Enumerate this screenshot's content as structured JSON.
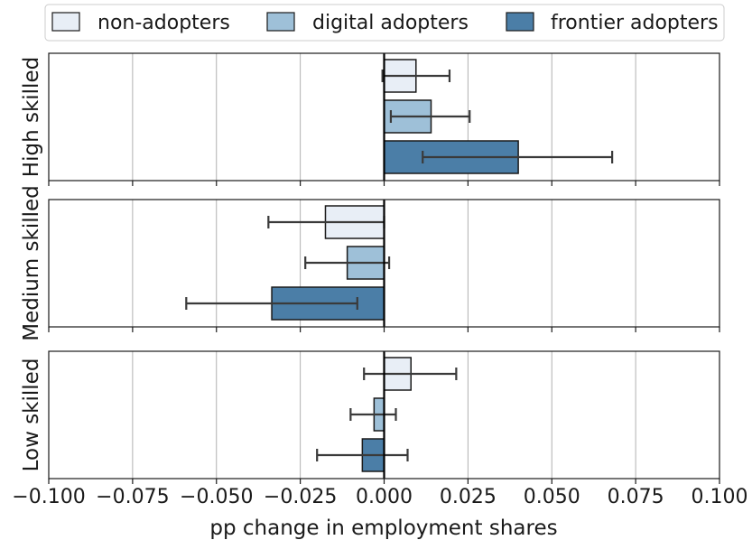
{
  "chart_data": {
    "type": "bar",
    "orientation": "horizontal",
    "xlabel": "pp change in employment shares",
    "xlim": [
      -0.1,
      0.1
    ],
    "xticks": [
      -0.1,
      -0.075,
      -0.05,
      -0.025,
      0.0,
      0.025,
      0.05,
      0.075,
      0.1
    ],
    "xtick_labels": [
      "−0.100",
      "−0.075",
      "−0.050",
      "−0.025",
      "0.000",
      "0.025",
      "0.050",
      "0.075",
      "0.100"
    ],
    "grid": "vertical",
    "legend_position": "top",
    "series_colors": [
      "#e8eef6",
      "#9ec0d8",
      "#4b7ea7"
    ],
    "series": [
      {
        "name": "non-adopters"
      },
      {
        "name": "digital adopters"
      },
      {
        "name": "frontier adopters"
      }
    ],
    "panels": [
      {
        "label": "High skilled",
        "values": [
          0.0095,
          0.014,
          0.04
        ],
        "error_low": [
          -0.0005,
          0.002,
          0.0115
        ],
        "error_high": [
          0.0195,
          0.0255,
          0.068
        ]
      },
      {
        "label": "Medium skilled",
        "values": [
          -0.0175,
          -0.011,
          -0.0335
        ],
        "error_low": [
          -0.0345,
          -0.0235,
          -0.059
        ],
        "error_high": [
          0.0,
          0.0015,
          -0.008
        ]
      },
      {
        "label": "Low skilled",
        "values": [
          0.008,
          -0.003,
          -0.0065
        ],
        "error_low": [
          -0.006,
          -0.01,
          -0.02
        ],
        "error_high": [
          0.0215,
          0.0035,
          0.007
        ]
      }
    ]
  }
}
